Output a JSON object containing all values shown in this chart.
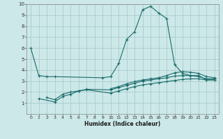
{
  "xlabel": "Humidex (Indice chaleur)",
  "bg_color": "#cce8e8",
  "grid_color": "#aacccc",
  "line_color": "#1a6b6b",
  "xlim": [
    -0.5,
    23.5
  ],
  "ylim": [
    0,
    10
  ],
  "xticks": [
    0,
    1,
    2,
    3,
    4,
    5,
    6,
    7,
    8,
    9,
    10,
    11,
    12,
    13,
    14,
    15,
    16,
    17,
    18,
    19,
    20,
    21,
    22,
    23
  ],
  "yticks": [
    1,
    2,
    3,
    4,
    5,
    6,
    7,
    8,
    9,
    10
  ],
  "line1_x": [
    0,
    1,
    2,
    3,
    9,
    10,
    11,
    12,
    13,
    14,
    15,
    16,
    17,
    18,
    19,
    20,
    21,
    22,
    23
  ],
  "line1_y": [
    6.0,
    3.5,
    3.4,
    3.4,
    3.3,
    3.4,
    4.6,
    6.8,
    7.5,
    9.5,
    9.8,
    9.2,
    8.7,
    4.5,
    3.7,
    3.5,
    3.5,
    3.1,
    3.1
  ],
  "line2_x": [
    1,
    3,
    4,
    5,
    6,
    7,
    10,
    11,
    12,
    13,
    14,
    15,
    16,
    17,
    18,
    19,
    20,
    21,
    22,
    23
  ],
  "line2_y": [
    1.4,
    1.1,
    1.6,
    1.8,
    2.1,
    2.2,
    1.9,
    2.1,
    2.3,
    2.5,
    2.65,
    2.75,
    2.85,
    2.95,
    3.05,
    3.15,
    3.2,
    3.2,
    3.1,
    3.1
  ],
  "line3_x": [
    2,
    3,
    4,
    5,
    6,
    7,
    10,
    11,
    12,
    13,
    14,
    15,
    16,
    17,
    18,
    19,
    20,
    21,
    22,
    23
  ],
  "line3_y": [
    1.5,
    1.3,
    1.8,
    2.0,
    2.1,
    2.25,
    2.2,
    2.4,
    2.6,
    2.8,
    3.0,
    3.1,
    3.2,
    3.3,
    3.45,
    3.5,
    3.5,
    3.4,
    3.2,
    3.2
  ],
  "line4_x": [
    10,
    11,
    12,
    13,
    14,
    15,
    16,
    17,
    18,
    19,
    20,
    21,
    22,
    23
  ],
  "line4_y": [
    2.3,
    2.5,
    2.75,
    2.95,
    3.1,
    3.2,
    3.3,
    3.5,
    3.75,
    3.85,
    3.8,
    3.7,
    3.4,
    3.3
  ]
}
